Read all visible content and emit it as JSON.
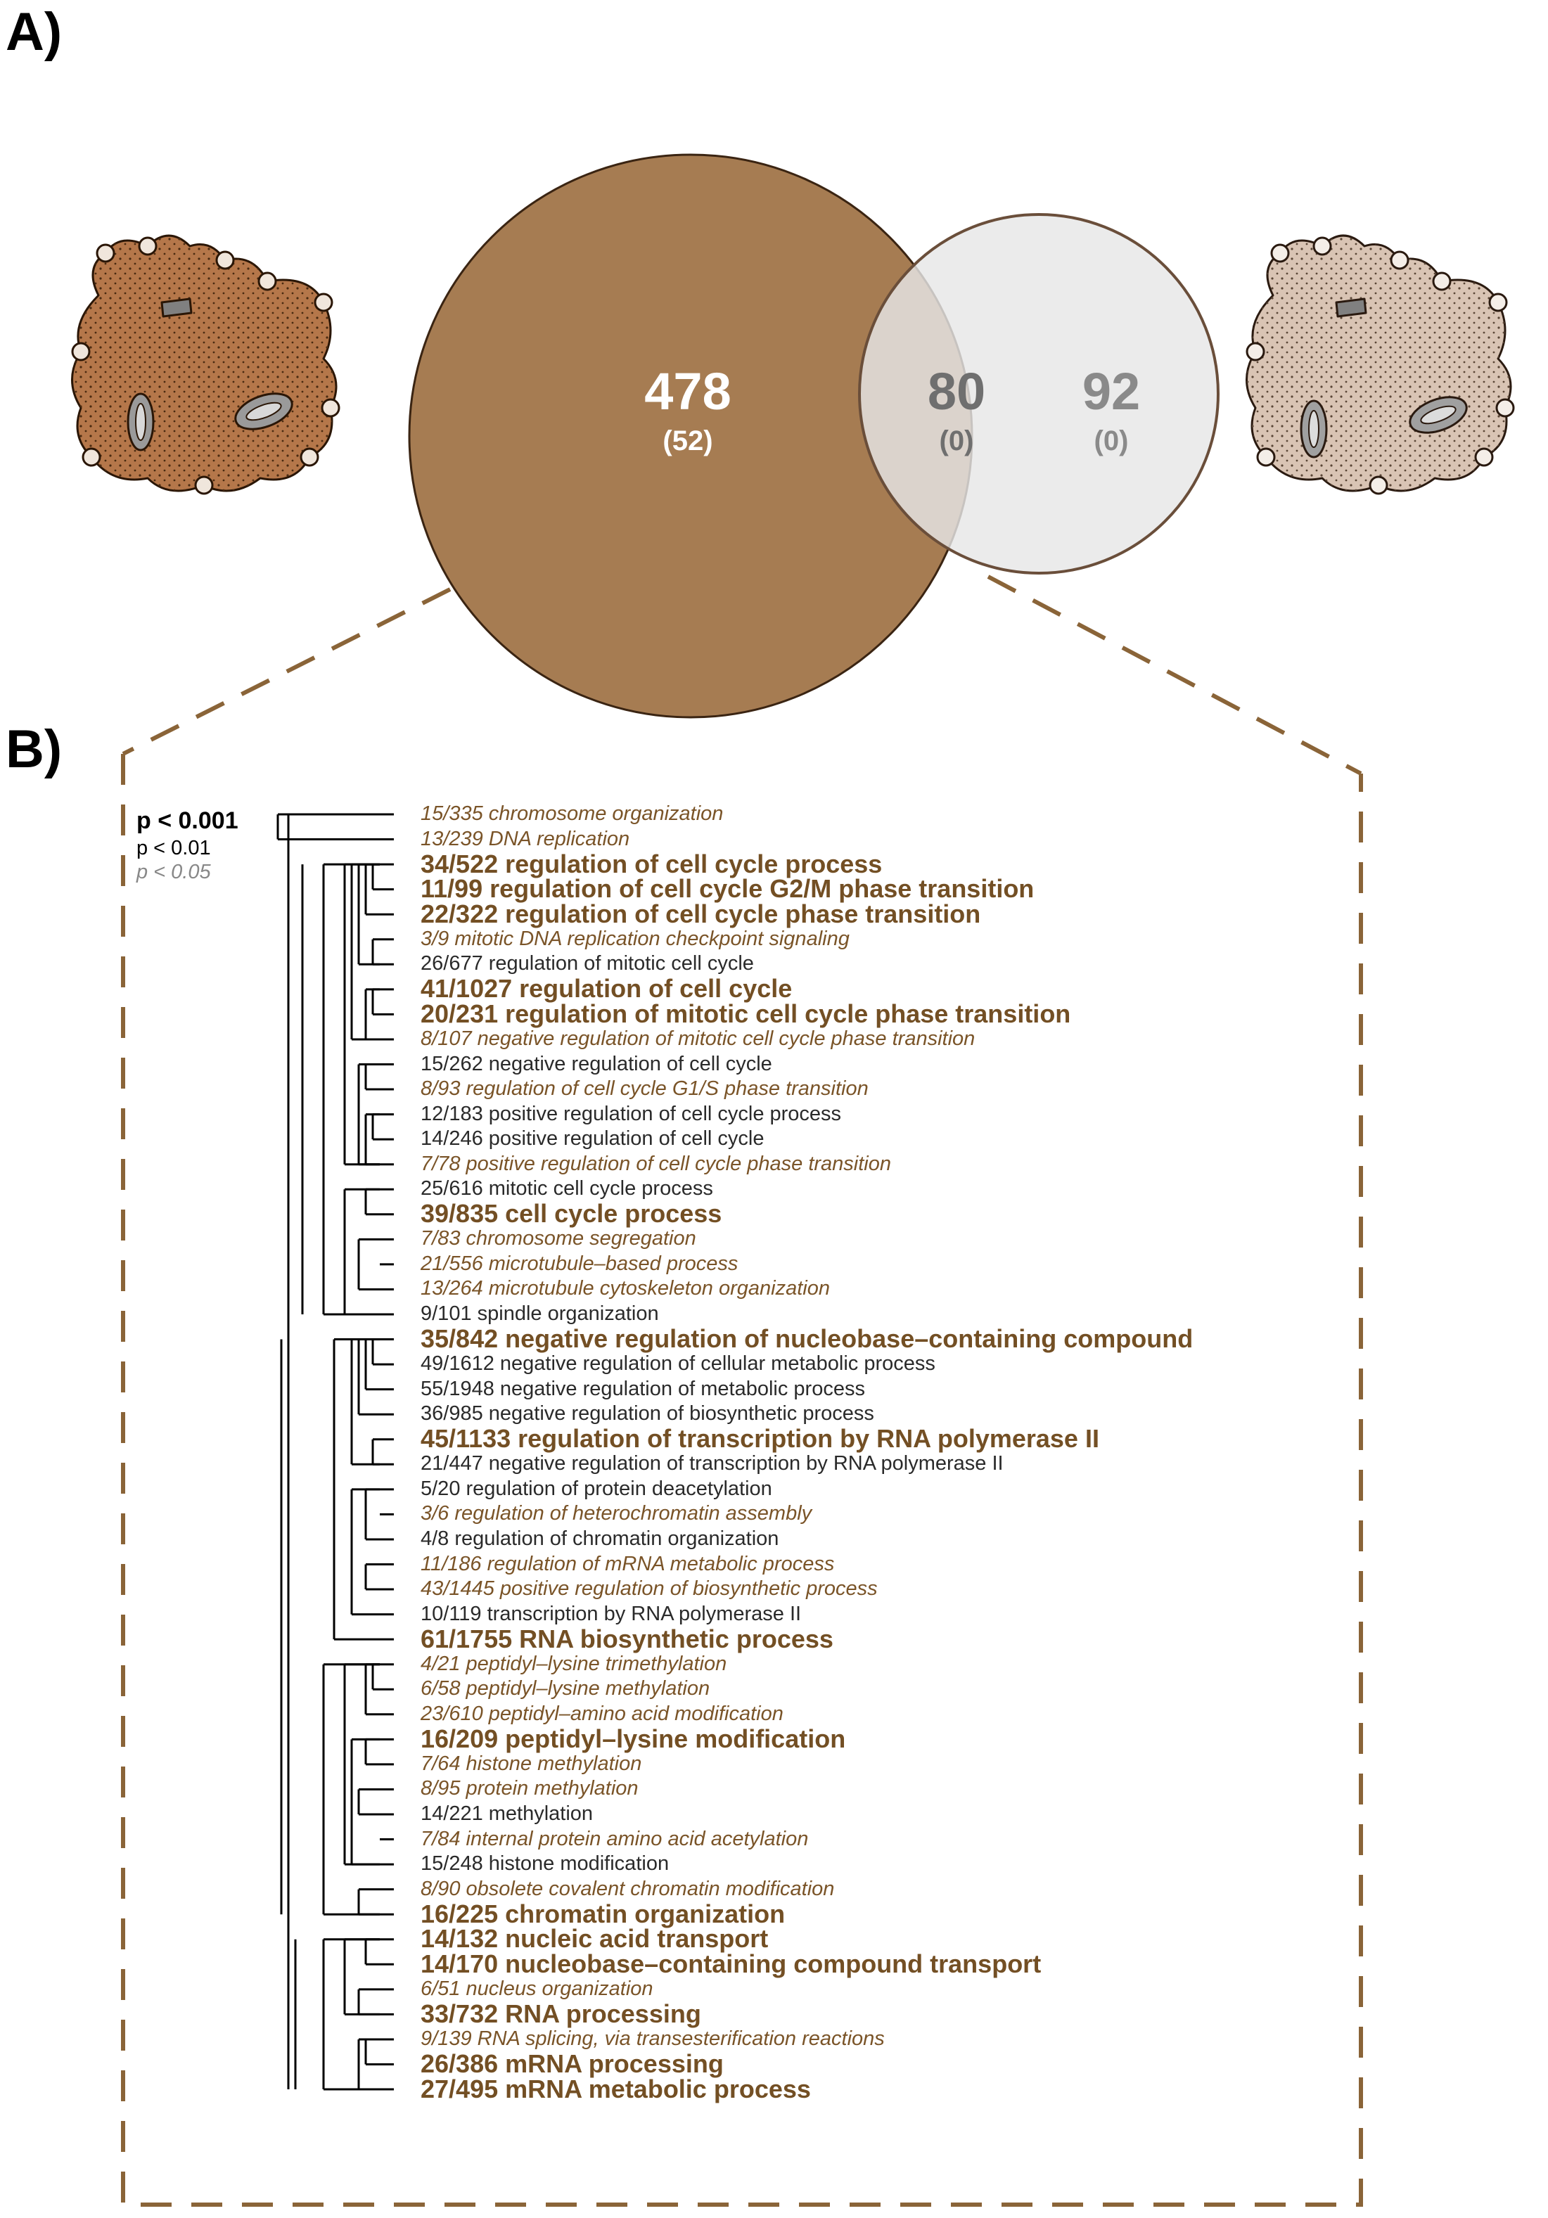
{
  "labels": {
    "panel_a": "A)",
    "panel_b": "B)"
  },
  "venn": {
    "left": {
      "count": "478",
      "sub": "(52)"
    },
    "overlap": {
      "count": "80",
      "sub": "(0)"
    },
    "right": {
      "count": "92",
      "sub": "(0)"
    },
    "colors": {
      "left_fill": "#a67c52",
      "right_fill": "#e6e6e6",
      "right_stroke": "#6a4e3a",
      "outline": "#3a2412",
      "dash": "#8a6438"
    }
  },
  "legend": {
    "high": "p < 0.001",
    "mid": "p < 0.01",
    "low": "p < 0.05"
  },
  "terms": [
    {
      "text": "15/335 chromosome organization",
      "level": "low"
    },
    {
      "text": "13/239 DNA replication",
      "level": "low"
    },
    {
      "text": "34/522 regulation of cell cycle process",
      "level": "high"
    },
    {
      "text": "11/99 regulation of cell cycle G2/M phase transition",
      "level": "high"
    },
    {
      "text": "22/322 regulation of cell cycle phase transition",
      "level": "high"
    },
    {
      "text": "3/9 mitotic DNA replication checkpoint signaling",
      "level": "low"
    },
    {
      "text": "26/677 regulation of mitotic cell cycle",
      "level": "mid"
    },
    {
      "text": "41/1027 regulation of cell cycle",
      "level": "high"
    },
    {
      "text": "20/231 regulation of mitotic cell cycle phase transition",
      "level": "high"
    },
    {
      "text": "8/107 negative regulation of mitotic cell cycle phase transition",
      "level": "low"
    },
    {
      "text": "15/262 negative regulation of cell cycle",
      "level": "mid"
    },
    {
      "text": "8/93 regulation of cell cycle G1/S phase transition",
      "level": "low"
    },
    {
      "text": "12/183 positive regulation of cell cycle process",
      "level": "mid"
    },
    {
      "text": "14/246 positive regulation of cell cycle",
      "level": "mid"
    },
    {
      "text": "7/78 positive regulation of cell cycle phase transition",
      "level": "low"
    },
    {
      "text": "25/616 mitotic cell cycle process",
      "level": "mid"
    },
    {
      "text": "39/835 cell cycle process",
      "level": "high"
    },
    {
      "text": "7/83 chromosome segregation",
      "level": "low"
    },
    {
      "text": "21/556 microtubule–based process",
      "level": "low"
    },
    {
      "text": "13/264 microtubule cytoskeleton organization",
      "level": "low"
    },
    {
      "text": "9/101 spindle organization",
      "level": "mid"
    },
    {
      "text": "35/842 negative regulation of nucleobase–containing compound",
      "level": "high"
    },
    {
      "text": "49/1612 negative regulation of cellular metabolic process",
      "level": "mid"
    },
    {
      "text": "55/1948 negative regulation of metabolic process",
      "level": "mid"
    },
    {
      "text": "36/985 negative regulation of biosynthetic process",
      "level": "mid"
    },
    {
      "text": "45/1133 regulation of transcription by RNA polymerase II",
      "level": "high"
    },
    {
      "text": "21/447 negative regulation of transcription by RNA polymerase II",
      "level": "mid"
    },
    {
      "text": "5/20 regulation of protein deacetylation",
      "level": "mid"
    },
    {
      "text": "3/6 regulation of heterochromatin assembly",
      "level": "low"
    },
    {
      "text": "4/8 regulation of chromatin organization",
      "level": "mid"
    },
    {
      "text": "11/186 regulation of mRNA metabolic process",
      "level": "low"
    },
    {
      "text": "43/1445 positive regulation of biosynthetic process",
      "level": "low"
    },
    {
      "text": "10/119 transcription by RNA polymerase II",
      "level": "mid"
    },
    {
      "text": "61/1755 RNA biosynthetic process",
      "level": "high"
    },
    {
      "text": "4/21 peptidyl–lysine trimethylation",
      "level": "low"
    },
    {
      "text": "6/58 peptidyl–lysine methylation",
      "level": "low"
    },
    {
      "text": "23/610 peptidyl–amino acid modification",
      "level": "low"
    },
    {
      "text": "16/209 peptidyl–lysine modification",
      "level": "high"
    },
    {
      "text": "7/64 histone methylation",
      "level": "low"
    },
    {
      "text": "8/95 protein methylation",
      "level": "low"
    },
    {
      "text": "14/221 methylation",
      "level": "mid"
    },
    {
      "text": "7/84 internal protein amino acid acetylation",
      "level": "low"
    },
    {
      "text": "15/248 histone modification",
      "level": "mid"
    },
    {
      "text": "8/90 obsolete covalent chromatin modification",
      "level": "low"
    },
    {
      "text": "16/225 chromatin organization",
      "level": "high"
    },
    {
      "text": "14/132 nucleic acid transport",
      "level": "high"
    },
    {
      "text": "14/170 nucleobase–containing compound transport",
      "level": "high"
    },
    {
      "text": "6/51 nucleus organization",
      "level": "low"
    },
    {
      "text": "33/732 RNA processing",
      "level": "high"
    },
    {
      "text": "9/139 RNA splicing, via transesterification reactions",
      "level": "low"
    },
    {
      "text": "26/386 mRNA processing",
      "level": "high"
    },
    {
      "text": "27/495 mRNA metabolic process",
      "level": "high"
    }
  ]
}
